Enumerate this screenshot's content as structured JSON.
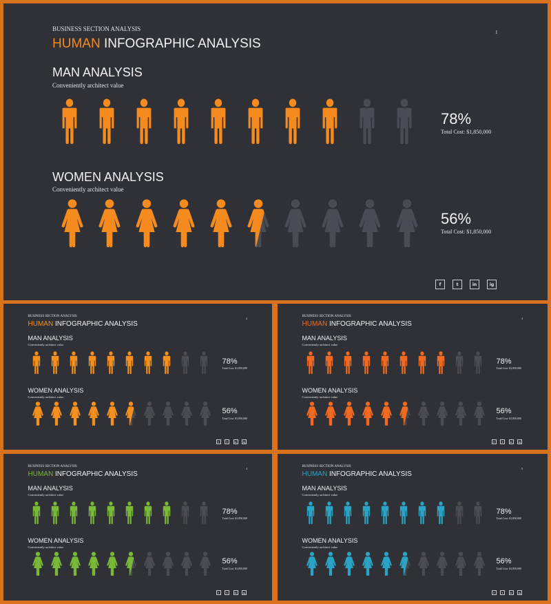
{
  "slides": [
    {
      "section_label": "BUSINESS SECTION ANALYSIS",
      "title_highlight": "HUMAN",
      "title_rest": "INFOGRAPHIC ANALYSIS",
      "page_number": "1",
      "accent": "#f58a1f",
      "man": {
        "heading": "MAN ANALYSIS",
        "subtitle": "Conveniently architect value",
        "percent_label": "78%",
        "value": 78,
        "cost": "Total Cost: $1,850,000"
      },
      "woman": {
        "heading": "WOMEN ANALYSIS",
        "subtitle": "Conveniently architect value",
        "percent_label": "56%",
        "value": 56,
        "cost": "Total Cost: $1,850,000"
      },
      "social": [
        "f",
        "t",
        "in",
        "ig"
      ]
    },
    {
      "section_label": "BUSINESS SECTION ANALYSIS",
      "title_highlight": "HUMAN",
      "title_rest": "INFOGRAPHIC ANALYSIS",
      "page_number": "2",
      "accent": "#f5901e",
      "man": {
        "heading": "MAN ANALYSIS",
        "subtitle": "Conveniently architect value",
        "percent_label": "78%",
        "value": 78,
        "cost": "Total Cost: $1,850,000"
      },
      "woman": {
        "heading": "WOMEN ANALYSIS",
        "subtitle": "Conveniently architect value",
        "percent_label": "56%",
        "value": 56,
        "cost": "Total Cost: $1,850,000"
      },
      "social": [
        "f",
        "t",
        "in",
        "ig"
      ]
    },
    {
      "section_label": "BUSINESS SECTION ANALYSIS",
      "title_highlight": "HUMAN",
      "title_rest": "INFOGRAPHIC ANALYSIS",
      "page_number": "3",
      "accent": "#f26a21",
      "man": {
        "heading": "MAN ANALYSIS",
        "subtitle": "Conveniently architect value",
        "percent_label": "78%",
        "value": 78,
        "cost": "Total Cost: $1,850,000"
      },
      "woman": {
        "heading": "WOMEN ANALYSIS",
        "subtitle": "Conveniently architect value",
        "percent_label": "56%",
        "value": 56,
        "cost": "Total Cost: $1,850,000"
      },
      "social": [
        "f",
        "t",
        "in",
        "ig"
      ]
    },
    {
      "section_label": "BUSINESS SECTION ANALYSIS",
      "title_highlight": "HUMAN",
      "title_rest": "INFOGRAPHIC ANALYSIS",
      "page_number": "4",
      "accent": "#7ab83a",
      "man": {
        "heading": "MAN ANALYSIS",
        "subtitle": "Conveniently architect value",
        "percent_label": "78%",
        "value": 78,
        "cost": "Total Cost: $1,850,000"
      },
      "woman": {
        "heading": "WOMEN ANALYSIS",
        "subtitle": "Conveniently architect value",
        "percent_label": "56%",
        "value": 56,
        "cost": "Total Cost: $1,850,000"
      },
      "social": [
        "f",
        "t",
        "in",
        "ig"
      ]
    },
    {
      "section_label": "BUSINESS SECTION ANALYSIS",
      "title_highlight": "HUMAN",
      "title_rest": "INFOGRAPHIC ANALYSIS",
      "page_number": "5",
      "accent": "#2aa3c4",
      "man": {
        "heading": "MAN ANALYSIS",
        "subtitle": "Conveniently architect value",
        "percent_label": "78%",
        "value": 78,
        "cost": "Total Cost: $1,850,000"
      },
      "woman": {
        "heading": "WOMEN ANALYSIS",
        "subtitle": "Conveniently architect value",
        "percent_label": "56%",
        "value": 56,
        "cost": "Total Cost: $1,850,000"
      },
      "social": [
        "f",
        "t",
        "in",
        "ig"
      ]
    }
  ],
  "inactive_color": "#4a4c53"
}
